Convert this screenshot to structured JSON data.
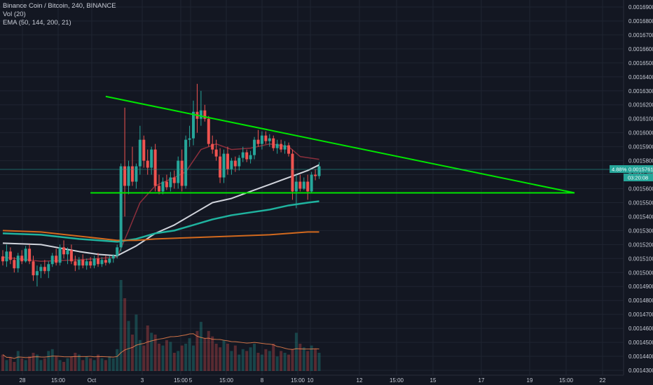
{
  "legend": {
    "symbol_line": "Binance Coin / Bitcoin, 240, BINANCE",
    "vol_line": "Vol (20)",
    "ema_line": "EMA (50, 144, 200, 21)"
  },
  "price_tag": {
    "change": "4.88%",
    "price": "0.0015761",
    "timer": "03:20:08"
  },
  "colors": {
    "background": "#131722",
    "grid": "#1f2431",
    "up": "#26a69a",
    "down": "#ef5350",
    "trendline": "#00e600",
    "ema21": "#8b2f3c",
    "ema50": "#d1d4dc",
    "ema144": "#1fb39f",
    "ema200": "#d2691e",
    "vol_ma": "#ff8a50"
  },
  "chart_data": {
    "type": "candlestick",
    "title": "Binance Coin / Bitcoin, 240, BINANCE",
    "ylim": [
      0.00143,
      0.0017
    ],
    "y_ticks": [
      "0.0016900",
      "0.0016800",
      "0.0016700",
      "0.0016600",
      "0.0016500",
      "0.0016400",
      "0.0016300",
      "0.0016200",
      "0.0016100",
      "0.0016000",
      "0.0015900",
      "0.0015800",
      "0.0015700",
      "0.0015600",
      "0.0015500",
      "0.0015400",
      "0.0015300",
      "0.0015200",
      "0.0015100",
      "0.0015000",
      "0.0014900",
      "0.0014800",
      "0.0014700",
      "0.0014600",
      "0.0014500",
      "0.0014400",
      "0.0014300"
    ],
    "x_ticks": [
      "28",
      "15:00",
      "Oct",
      "3",
      "15:00",
      "5",
      "15:00",
      "8",
      "15:00",
      "10",
      "12",
      "15:00",
      "15",
      "17",
      "19",
      "15:00",
      "22"
    ],
    "candles": [
      {
        "o": 0.0015115,
        "h": 0.001516,
        "l": 0.001505,
        "c": 0.001508
      },
      {
        "o": 0.001508,
        "h": 0.00152,
        "l": 0.001504,
        "c": 0.001515
      },
      {
        "o": 0.001515,
        "h": 0.001518,
        "l": 0.001506,
        "c": 0.001509
      },
      {
        "o": 0.001509,
        "h": 0.001511,
        "l": 0.0015,
        "c": 0.001503
      },
      {
        "o": 0.001503,
        "h": 0.001514,
        "l": 0.0015,
        "c": 0.001512
      },
      {
        "o": 0.001512,
        "h": 0.001516,
        "l": 0.001506,
        "c": 0.001508
      },
      {
        "o": 0.001508,
        "h": 0.001519,
        "l": 0.001507,
        "c": 0.001517
      },
      {
        "o": 0.001517,
        "h": 0.00152,
        "l": 0.001506,
        "c": 0.001508
      },
      {
        "o": 0.001508,
        "h": 0.001512,
        "l": 0.001494,
        "c": 0.001498
      },
      {
        "o": 0.001498,
        "h": 0.001505,
        "l": 0.00149,
        "c": 0.001501
      },
      {
        "o": 0.001501,
        "h": 0.001506,
        "l": 0.001496,
        "c": 0.001504
      },
      {
        "o": 0.001504,
        "h": 0.001509,
        "l": 0.001499,
        "c": 0.001501
      },
      {
        "o": 0.001501,
        "h": 0.001508,
        "l": 0.001496,
        "c": 0.001506
      },
      {
        "o": 0.001506,
        "h": 0.001514,
        "l": 0.001504,
        "c": 0.001512
      },
      {
        "o": 0.001512,
        "h": 0.001517,
        "l": 0.001505,
        "c": 0.001507
      },
      {
        "o": 0.001507,
        "h": 0.00152,
        "l": 0.001505,
        "c": 0.001518
      },
      {
        "o": 0.001518,
        "h": 0.001523,
        "l": 0.00151,
        "c": 0.001513
      },
      {
        "o": 0.001513,
        "h": 0.001518,
        "l": 0.001506,
        "c": 0.001516
      },
      {
        "o": 0.001516,
        "h": 0.00152,
        "l": 0.001506,
        "c": 0.001508
      },
      {
        "o": 0.001508,
        "h": 0.001512,
        "l": 0.001501,
        "c": 0.001505
      },
      {
        "o": 0.001505,
        "h": 0.001511,
        "l": 0.001502,
        "c": 0.001509
      },
      {
        "o": 0.001509,
        "h": 0.001513,
        "l": 0.001503,
        "c": 0.001505
      },
      {
        "o": 0.001505,
        "h": 0.00151,
        "l": 0.001502,
        "c": 0.001508
      },
      {
        "o": 0.001508,
        "h": 0.001511,
        "l": 0.001503,
        "c": 0.001505
      },
      {
        "o": 0.001505,
        "h": 0.001512,
        "l": 0.001503,
        "c": 0.00151
      },
      {
        "o": 0.00151,
        "h": 0.001514,
        "l": 0.001504,
        "c": 0.001506
      },
      {
        "o": 0.001506,
        "h": 0.001511,
        "l": 0.001504,
        "c": 0.001509
      },
      {
        "o": 0.001509,
        "h": 0.001512,
        "l": 0.001505,
        "c": 0.001507
      },
      {
        "o": 0.001507,
        "h": 0.001512,
        "l": 0.001506,
        "c": 0.00151
      },
      {
        "o": 0.00151,
        "h": 0.001513,
        "l": 0.001507,
        "c": 0.001512
      },
      {
        "o": 0.001512,
        "h": 0.00152,
        "l": 0.00151,
        "c": 0.001518
      },
      {
        "o": 0.001518,
        "h": 0.001578,
        "l": 0.001515,
        "c": 0.001576
      },
      {
        "o": 0.001576,
        "h": 0.001618,
        "l": 0.00154,
        "c": 0.001562
      },
      {
        "o": 0.001562,
        "h": 0.00158,
        "l": 0.001556,
        "c": 0.001576
      },
      {
        "o": 0.001576,
        "h": 0.00159,
        "l": 0.001562,
        "c": 0.001565
      },
      {
        "o": 0.001565,
        "h": 0.001578,
        "l": 0.00156,
        "c": 0.001576
      },
      {
        "o": 0.001576,
        "h": 0.001605,
        "l": 0.00157,
        "c": 0.001595
      },
      {
        "o": 0.001595,
        "h": 0.001598,
        "l": 0.001575,
        "c": 0.00158
      },
      {
        "o": 0.00158,
        "h": 0.001588,
        "l": 0.00157,
        "c": 0.001575
      },
      {
        "o": 0.001575,
        "h": 0.00159,
        "l": 0.00157,
        "c": 0.001588
      },
      {
        "o": 0.001588,
        "h": 0.001592,
        "l": 0.001558,
        "c": 0.001562
      },
      {
        "o": 0.001562,
        "h": 0.00157,
        "l": 0.001556,
        "c": 0.001558
      },
      {
        "o": 0.001558,
        "h": 0.001568,
        "l": 0.001556,
        "c": 0.001565
      },
      {
        "o": 0.001565,
        "h": 0.00157,
        "l": 0.001559,
        "c": 0.001561
      },
      {
        "o": 0.001561,
        "h": 0.001572,
        "l": 0.001558,
        "c": 0.001568
      },
      {
        "o": 0.001568,
        "h": 0.001573,
        "l": 0.00156,
        "c": 0.001564
      },
      {
        "o": 0.001564,
        "h": 0.001583,
        "l": 0.00156,
        "c": 0.00158
      },
      {
        "o": 0.00158,
        "h": 0.001588,
        "l": 0.001558,
        "c": 0.001562
      },
      {
        "o": 0.001562,
        "h": 0.001598,
        "l": 0.00156,
        "c": 0.001595
      },
      {
        "o": 0.001595,
        "h": 0.001605,
        "l": 0.00159,
        "c": 0.001596
      },
      {
        "o": 0.001596,
        "h": 0.001623,
        "l": 0.001591,
        "c": 0.001615
      },
      {
        "o": 0.001615,
        "h": 0.001635,
        "l": 0.0016,
        "c": 0.00161
      },
      {
        "o": 0.00161,
        "h": 0.00163,
        "l": 0.001605,
        "c": 0.001616
      },
      {
        "o": 0.001616,
        "h": 0.00162,
        "l": 0.001608,
        "c": 0.00161
      },
      {
        "o": 0.00161,
        "h": 0.001612,
        "l": 0.00159,
        "c": 0.001592
      },
      {
        "o": 0.001592,
        "h": 0.001598,
        "l": 0.001585,
        "c": 0.001588
      },
      {
        "o": 0.001588,
        "h": 0.001595,
        "l": 0.00158,
        "c": 0.001583
      },
      {
        "o": 0.001583,
        "h": 0.001589,
        "l": 0.001564,
        "c": 0.001568
      },
      {
        "o": 0.001568,
        "h": 0.001588,
        "l": 0.001564,
        "c": 0.001585
      },
      {
        "o": 0.001585,
        "h": 0.00159,
        "l": 0.00157,
        "c": 0.001574
      },
      {
        "o": 0.001574,
        "h": 0.001582,
        "l": 0.00157,
        "c": 0.00158
      },
      {
        "o": 0.00158,
        "h": 0.001583,
        "l": 0.001572,
        "c": 0.001576
      },
      {
        "o": 0.001576,
        "h": 0.001584,
        "l": 0.001573,
        "c": 0.001582
      },
      {
        "o": 0.001582,
        "h": 0.00159,
        "l": 0.001579,
        "c": 0.001586
      },
      {
        "o": 0.001586,
        "h": 0.001588,
        "l": 0.001579,
        "c": 0.001581
      },
      {
        "o": 0.001581,
        "h": 0.001587,
        "l": 0.001578,
        "c": 0.001584
      },
      {
        "o": 0.001584,
        "h": 0.001597,
        "l": 0.001581,
        "c": 0.001595
      },
      {
        "o": 0.001595,
        "h": 0.001602,
        "l": 0.00159,
        "c": 0.001592
      },
      {
        "o": 0.001592,
        "h": 0.001601,
        "l": 0.001588,
        "c": 0.001598
      },
      {
        "o": 0.001598,
        "h": 0.001601,
        "l": 0.001592,
        "c": 0.001594
      },
      {
        "o": 0.001594,
        "h": 0.001599,
        "l": 0.00159,
        "c": 0.001596
      },
      {
        "o": 0.001596,
        "h": 0.001598,
        "l": 0.001587,
        "c": 0.001589
      },
      {
        "o": 0.001589,
        "h": 0.001595,
        "l": 0.001585,
        "c": 0.001592
      },
      {
        "o": 0.001592,
        "h": 0.001595,
        "l": 0.001586,
        "c": 0.001588
      },
      {
        "o": 0.001588,
        "h": 0.001594,
        "l": 0.001585,
        "c": 0.001591
      },
      {
        "o": 0.001591,
        "h": 0.001593,
        "l": 0.001583,
        "c": 0.001585
      },
      {
        "o": 0.001585,
        "h": 0.001588,
        "l": 0.001552,
        "c": 0.001558
      },
      {
        "o": 0.001558,
        "h": 0.00157,
        "l": 0.001546,
        "c": 0.001565
      },
      {
        "o": 0.001565,
        "h": 0.00157,
        "l": 0.001558,
        "c": 0.00156
      },
      {
        "o": 0.00156,
        "h": 0.001568,
        "l": 0.001559,
        "c": 0.001565
      },
      {
        "o": 0.001565,
        "h": 0.00157,
        "l": 0.001552,
        "c": 0.001558
      },
      {
        "o": 0.001558,
        "h": 0.001572,
        "l": 0.001557,
        "c": 0.00157
      },
      {
        "o": 0.00157,
        "h": 0.001574,
        "l": 0.001566,
        "c": 0.001569
      },
      {
        "o": 0.001569,
        "h": 0.001579,
        "l": 0.001567,
        "c": 0.001576
      }
    ],
    "volume_max": 1.0,
    "volumes": [
      0.18,
      0.12,
      0.15,
      0.1,
      0.22,
      0.14,
      0.12,
      0.16,
      0.2,
      0.18,
      0.12,
      0.14,
      0.22,
      0.24,
      0.16,
      0.12,
      0.1,
      0.14,
      0.16,
      0.2,
      0.18,
      0.12,
      0.16,
      0.14,
      0.12,
      0.18,
      0.14,
      0.12,
      0.16,
      0.14,
      0.24,
      1.0,
      0.8,
      0.55,
      0.4,
      0.62,
      0.34,
      0.28,
      0.5,
      0.42,
      0.4,
      0.3,
      0.28,
      0.34,
      0.32,
      0.2,
      0.22,
      0.28,
      0.3,
      0.36,
      0.28,
      0.44,
      0.54,
      0.36,
      0.44,
      0.38,
      0.3,
      0.26,
      0.34,
      0.3,
      0.22,
      0.28,
      0.18,
      0.24,
      0.22,
      0.26,
      0.3,
      0.2,
      0.18,
      0.24,
      0.22,
      0.3,
      0.16,
      0.22,
      0.2,
      0.18,
      0.24,
      0.42,
      0.3,
      0.26,
      0.22,
      0.28,
      0.24,
      0.2
    ],
    "ema": [
      {
        "name": "EMA 21",
        "key": "ema21",
        "values": [
          [
            0,
            0.001511
          ],
          [
            10,
            0.001508
          ],
          [
            20,
            0.001509
          ],
          [
            30,
            0.001511
          ],
          [
            33,
            0.00153
          ],
          [
            36,
            0.00155
          ],
          [
            40,
            0.001562
          ],
          [
            45,
            0.001568
          ],
          [
            48,
            0.001572
          ],
          [
            52,
            0.001588
          ],
          [
            56,
            0.001592
          ],
          [
            60,
            0.001588
          ],
          [
            65,
            0.001589
          ],
          [
            70,
            0.001592
          ],
          [
            75,
            0.00159
          ],
          [
            78,
            0.001583
          ],
          [
            83,
            0.001581
          ]
        ]
      },
      {
        "name": "EMA 50",
        "key": "ema50",
        "values": [
          [
            0,
            0.001521
          ],
          [
            10,
            0.00152
          ],
          [
            20,
            0.001515
          ],
          [
            25,
            0.001513
          ],
          [
            30,
            0.001512
          ],
          [
            35,
            0.001519
          ],
          [
            40,
            0.001528
          ],
          [
            45,
            0.001534
          ],
          [
            50,
            0.001542
          ],
          [
            55,
            0.00155
          ],
          [
            60,
            0.001553
          ],
          [
            65,
            0.001558
          ],
          [
            70,
            0.001563
          ],
          [
            75,
            0.001568
          ],
          [
            80,
            0.001573
          ],
          [
            83,
            0.001577
          ]
        ]
      },
      {
        "name": "EMA 144",
        "key": "ema144",
        "values": [
          [
            0,
            0.001528
          ],
          [
            10,
            0.001527
          ],
          [
            20,
            0.001524
          ],
          [
            30,
            0.001522
          ],
          [
            35,
            0.001524
          ],
          [
            40,
            0.001528
          ],
          [
            45,
            0.00153
          ],
          [
            50,
            0.001534
          ],
          [
            55,
            0.001538
          ],
          [
            60,
            0.001541
          ],
          [
            65,
            0.001543
          ],
          [
            70,
            0.001545
          ],
          [
            75,
            0.001548
          ],
          [
            80,
            0.00155
          ],
          [
            83,
            0.001551
          ]
        ]
      },
      {
        "name": "EMA 200",
        "key": "ema200",
        "values": [
          [
            0,
            0.00153
          ],
          [
            10,
            0.001529
          ],
          [
            20,
            0.001526
          ],
          [
            30,
            0.001523
          ],
          [
            35,
            0.001523
          ],
          [
            40,
            0.001524
          ],
          [
            50,
            0.001525
          ],
          [
            60,
            0.001526
          ],
          [
            70,
            0.001527
          ],
          [
            75,
            0.001528
          ],
          [
            80,
            0.001529
          ],
          [
            83,
            0.001529
          ]
        ]
      }
    ],
    "trendlines": [
      {
        "name": "descending-resistance",
        "from": [
          0.001626,
          27
        ],
        "to": [
          0.001557,
          150
        ]
      },
      {
        "name": "horizontal-support",
        "from": [
          0.001557,
          23
        ],
        "to": [
          0.001557,
          150
        ]
      }
    ]
  }
}
